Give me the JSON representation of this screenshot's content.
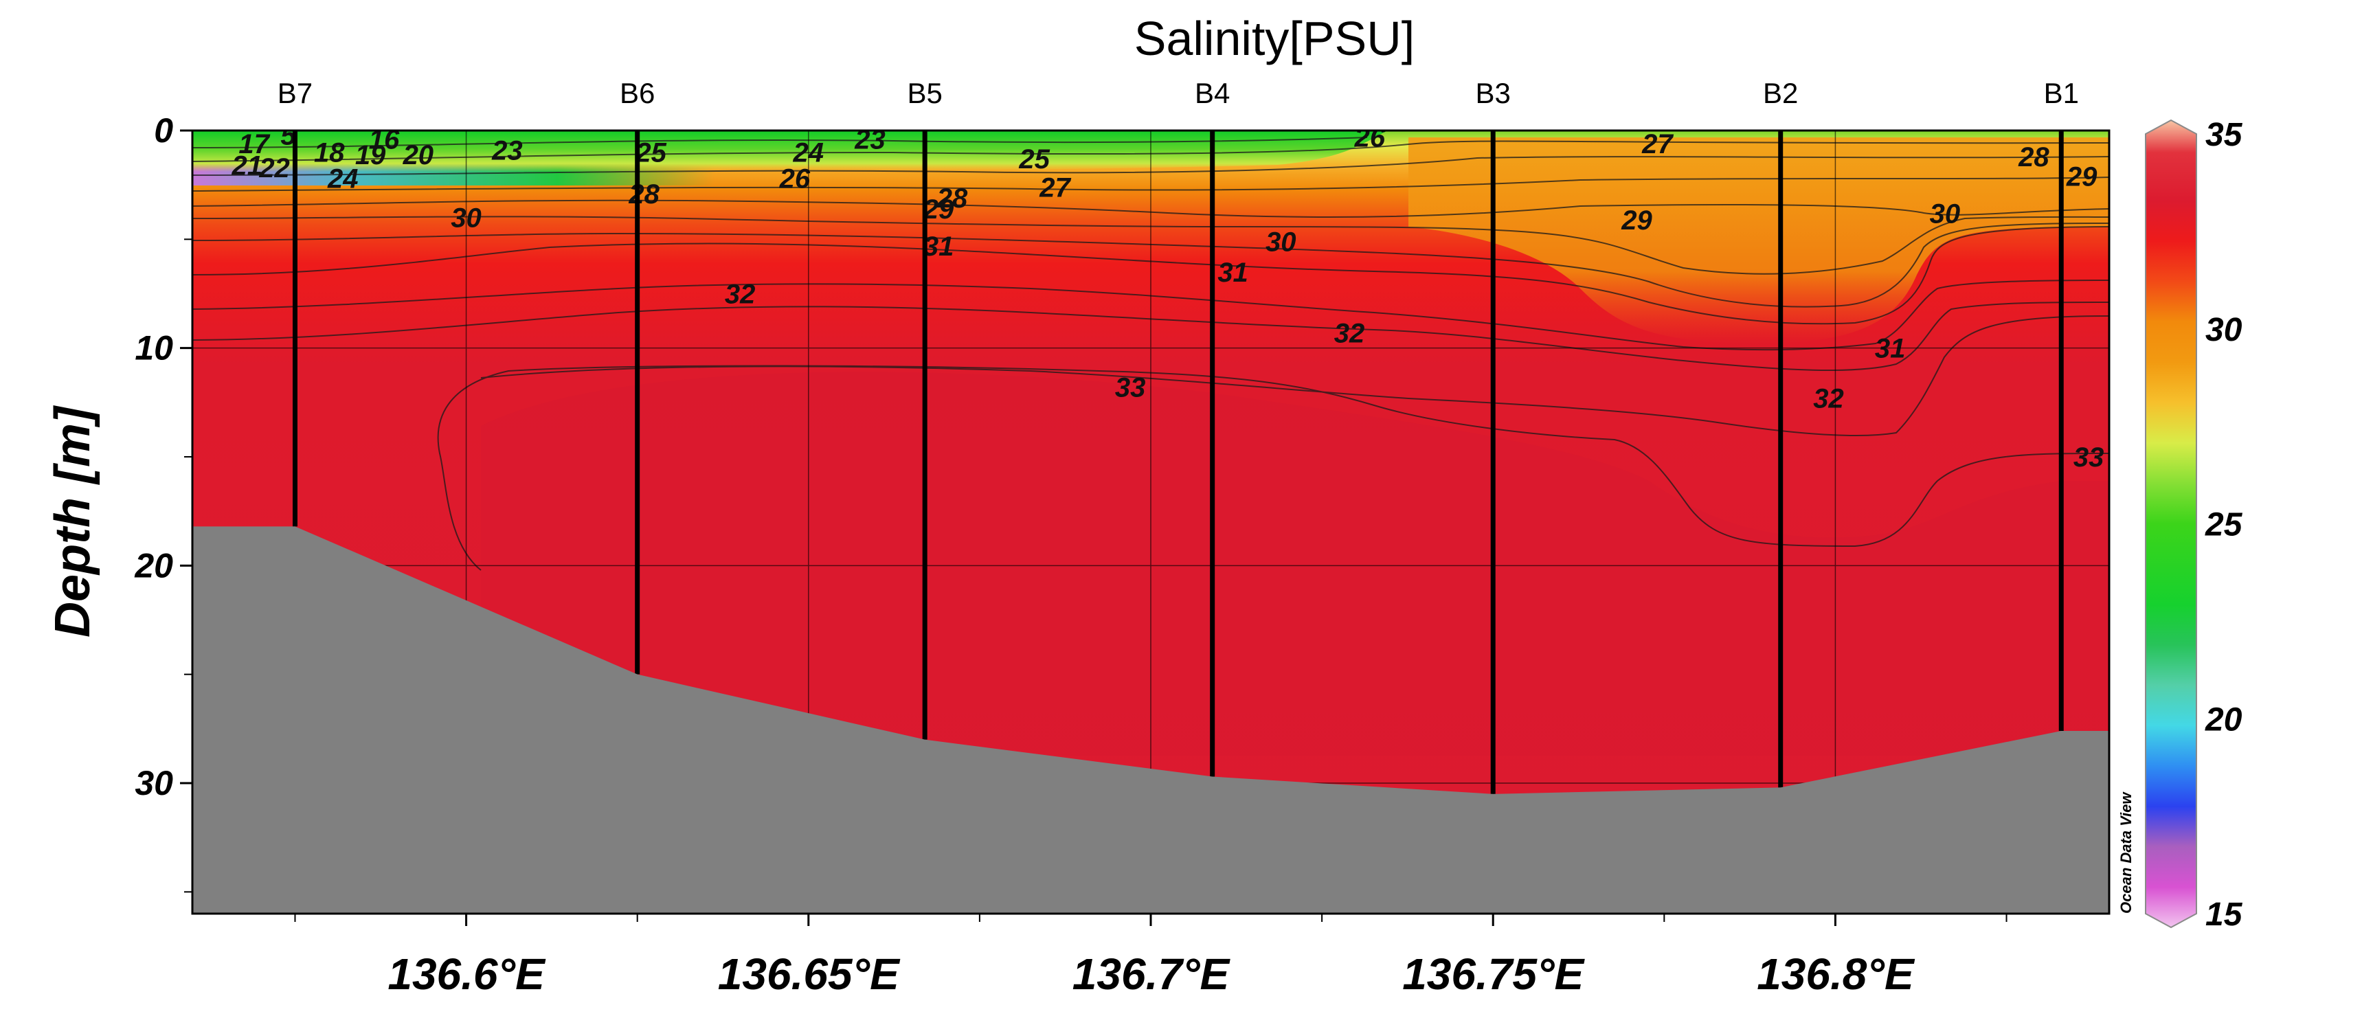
{
  "chart_data": {
    "type": "heatmap",
    "title": "Salinity[PSU]",
    "ylabel": "Depth [m]",
    "xlabel": "",
    "xlim": [
      136.56,
      136.84
    ],
    "ylim": [
      36,
      0
    ],
    "x_ticks": [
      {
        "value": 136.6,
        "label": "136.6°E"
      },
      {
        "value": 136.65,
        "label": "136.65°E"
      },
      {
        "value": 136.7,
        "label": "136.7°E"
      },
      {
        "value": 136.75,
        "label": "136.75°E"
      },
      {
        "value": 136.8,
        "label": "136.8°E"
      }
    ],
    "y_ticks": [
      {
        "value": 0,
        "label": "0"
      },
      {
        "value": 10,
        "label": "10"
      },
      {
        "value": 20,
        "label": "20"
      },
      {
        "value": 30,
        "label": "30"
      }
    ],
    "grid": true,
    "stations": [
      {
        "name": "B7",
        "lon": 136.575,
        "max_depth": 18.2
      },
      {
        "name": "B6",
        "lon": 136.625,
        "max_depth": 25.0
      },
      {
        "name": "B5",
        "lon": 136.667,
        "max_depth": 28.0
      },
      {
        "name": "B4",
        "lon": 136.709,
        "max_depth": 29.7
      },
      {
        "name": "B3",
        "lon": 136.75,
        "max_depth": 30.5
      },
      {
        "name": "B2",
        "lon": 136.792,
        "max_depth": 30.2
      },
      {
        "name": "B1",
        "lon": 136.833,
        "max_depth": 27.6
      }
    ],
    "bottom_profile": [
      {
        "lon": 136.56,
        "depth": 18.2
      },
      {
        "lon": 136.575,
        "depth": 18.2
      },
      {
        "lon": 136.625,
        "depth": 25.0
      },
      {
        "lon": 136.667,
        "depth": 28.0
      },
      {
        "lon": 136.709,
        "depth": 29.7
      },
      {
        "lon": 136.75,
        "depth": 30.5
      },
      {
        "lon": 136.792,
        "depth": 30.2
      },
      {
        "lon": 136.833,
        "depth": 27.6
      },
      {
        "lon": 136.84,
        "depth": 27.6
      }
    ],
    "contour_labels": [
      {
        "value": "17",
        "lon": 136.569,
        "depth": 0.6
      },
      {
        "value": "5",
        "lon": 136.574,
        "depth": 0.2
      },
      {
        "value": "16",
        "lon": 136.588,
        "depth": 0.4
      },
      {
        "value": "21",
        "lon": 136.568,
        "depth": 1.6
      },
      {
        "value": "22",
        "lon": 136.572,
        "depth": 1.7
      },
      {
        "value": "18",
        "lon": 136.58,
        "depth": 1.0
      },
      {
        "value": "19",
        "lon": 136.586,
        "depth": 1.1
      },
      {
        "value": "20",
        "lon": 136.593,
        "depth": 1.1
      },
      {
        "value": "24",
        "lon": 136.582,
        "depth": 2.2
      },
      {
        "value": "23",
        "lon": 136.606,
        "depth": 0.9
      },
      {
        "value": "25",
        "lon": 136.627,
        "depth": 1.0
      },
      {
        "value": "24",
        "lon": 136.65,
        "depth": 1.0
      },
      {
        "value": "23",
        "lon": 136.659,
        "depth": 0.4
      },
      {
        "value": "26",
        "lon": 136.648,
        "depth": 2.2
      },
      {
        "value": "25",
        "lon": 136.683,
        "depth": 1.3
      },
      {
        "value": "28",
        "lon": 136.626,
        "depth": 2.9
      },
      {
        "value": "28",
        "lon": 136.671,
        "depth": 3.1
      },
      {
        "value": "29",
        "lon": 136.669,
        "depth": 3.6
      },
      {
        "value": "27",
        "lon": 136.686,
        "depth": 2.6
      },
      {
        "value": "26",
        "lon": 136.732,
        "depth": 0.3
      },
      {
        "value": "27",
        "lon": 136.774,
        "depth": 0.6
      },
      {
        "value": "28",
        "lon": 136.829,
        "depth": 1.2
      },
      {
        "value": "29",
        "lon": 136.836,
        "depth": 2.1
      },
      {
        "value": "30",
        "lon": 136.6,
        "depth": 4.0
      },
      {
        "value": "29",
        "lon": 136.771,
        "depth": 4.1
      },
      {
        "value": "30",
        "lon": 136.816,
        "depth": 3.8
      },
      {
        "value": "31",
        "lon": 136.669,
        "depth": 5.3
      },
      {
        "value": "30",
        "lon": 136.719,
        "depth": 5.1
      },
      {
        "value": "31",
        "lon": 136.712,
        "depth": 6.5
      },
      {
        "value": "32",
        "lon": 136.64,
        "depth": 7.5
      },
      {
        "value": "32",
        "lon": 136.729,
        "depth": 9.3
      },
      {
        "value": "31",
        "lon": 136.808,
        "depth": 10.0
      },
      {
        "value": "33",
        "lon": 136.697,
        "depth": 11.8
      },
      {
        "value": "32",
        "lon": 136.799,
        "depth": 12.3
      },
      {
        "value": "33",
        "lon": 136.837,
        "depth": 15.0
      }
    ],
    "colorbar": {
      "min": 15,
      "max": 35,
      "ticks": [
        {
          "value": 35,
          "label": "35"
        },
        {
          "value": 30,
          "label": "30"
        },
        {
          "value": 25,
          "label": "25"
        },
        {
          "value": 20,
          "label": "20"
        },
        {
          "value": 15,
          "label": "15"
        }
      ],
      "colors": {
        "c15": "#f2c4ef",
        "c16": "#d852d2",
        "c17": "#a95fbf",
        "c18": "#2b42f0",
        "c19": "#2f8ff2",
        "c20": "#43d8e6",
        "c21": "#54cfa8",
        "c22": "#28c35a",
        "c23": "#16d12e",
        "c25": "#3cd41a",
        "c26": "#86df35",
        "c27": "#d8ec48",
        "c28": "#f6c02c",
        "c29": "#f29a11",
        "c30": "#f28a0c",
        "c31": "#f24a17",
        "c32": "#ee1b1b",
        "c33": "#dc1b2f",
        "c34": "#e2323d",
        "c35": "#f8c6a4"
      }
    },
    "bottom_color": "#808080",
    "watermark": "Ocean Data View"
  }
}
